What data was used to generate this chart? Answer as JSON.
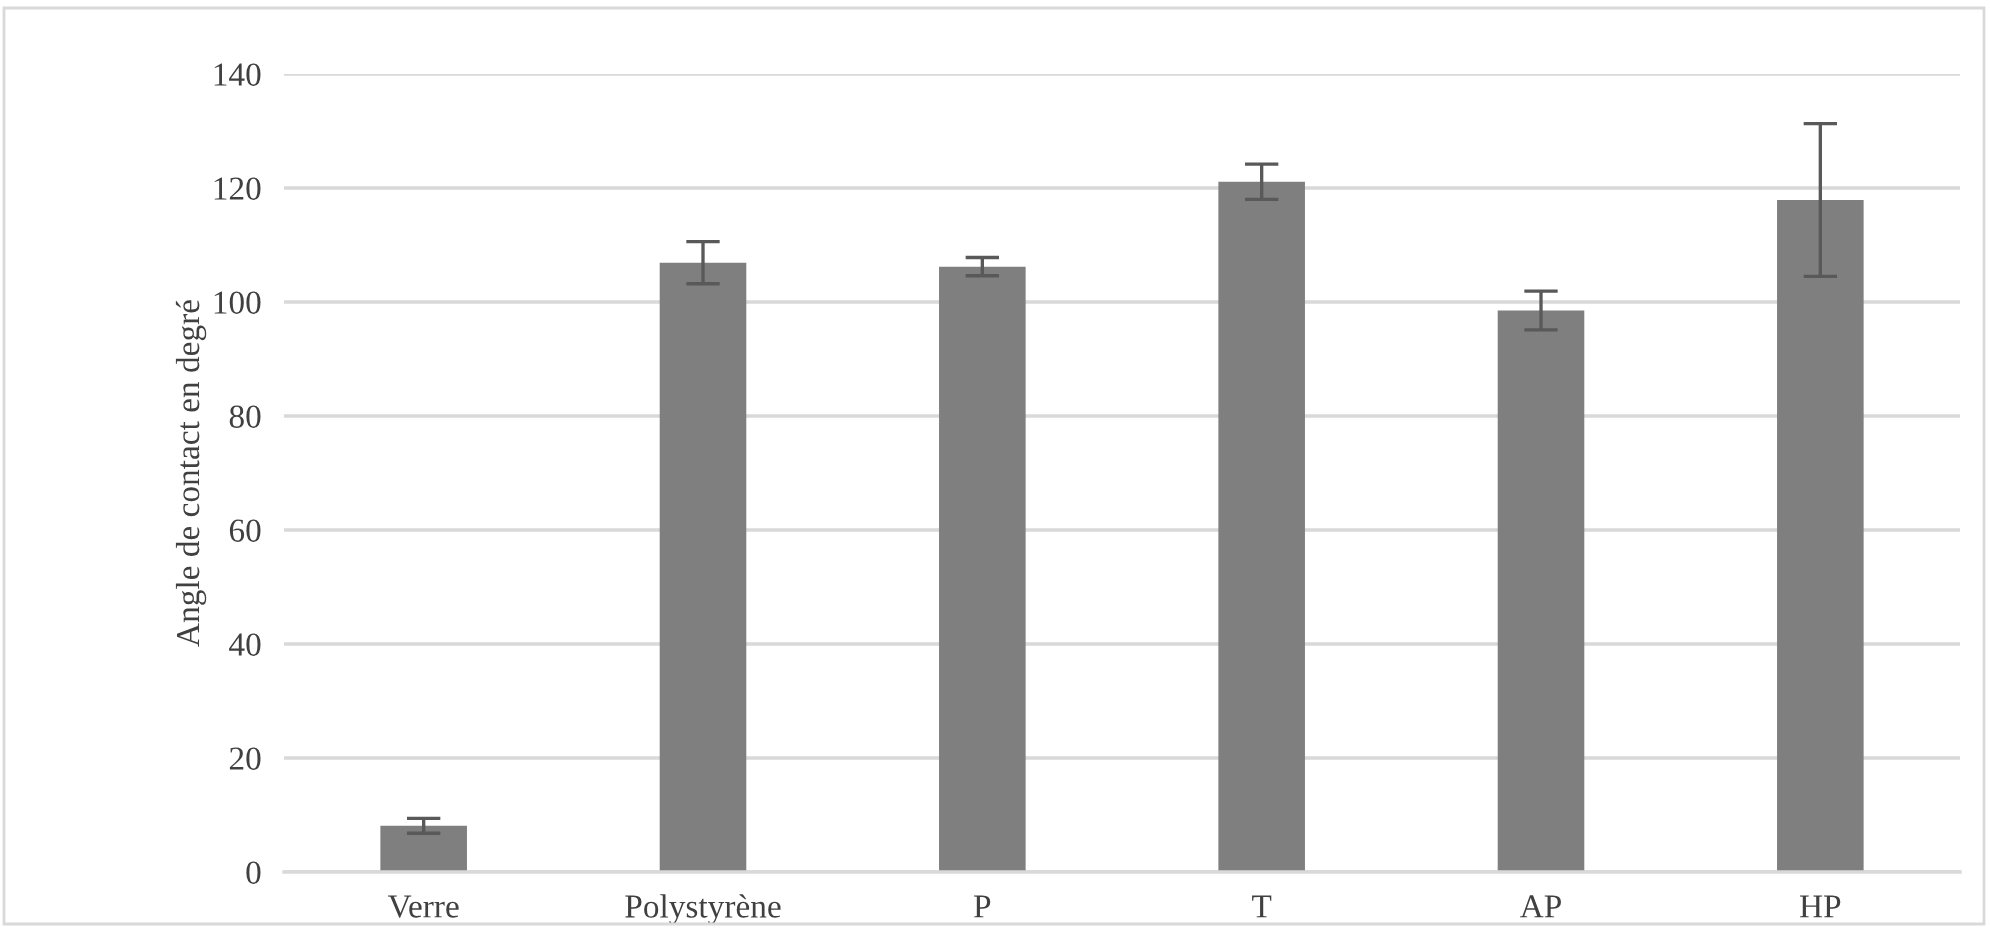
{
  "chart_data": {
    "type": "bar",
    "ylabel": "Angle de contact en degré",
    "categories": [
      "Verre",
      "Polystyrène",
      "P",
      "T",
      "AP",
      "HP"
    ],
    "values": [
      8.1,
      106.9,
      106.2,
      121.1,
      98.5,
      117.9
    ],
    "errors": [
      1.3,
      3.7,
      1.6,
      3.1,
      3.4,
      13.4
    ],
    "color": "#7f7f7f",
    "ylim": [
      0,
      140
    ],
    "yticks": [
      0,
      20,
      40,
      60,
      80,
      100,
      120,
      140
    ],
    "grid": "y",
    "legend": false
  }
}
